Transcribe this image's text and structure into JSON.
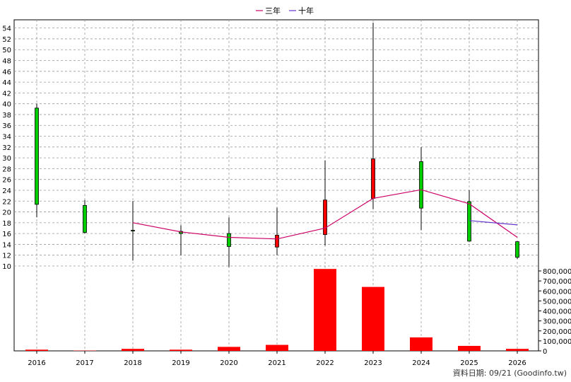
{
  "legend": [
    {
      "label": "三年",
      "color": "#cc0066"
    },
    {
      "label": "十年",
      "color": "#6633cc"
    }
  ],
  "footer": "資料日期: 09/21  (Goodinfo.tw)",
  "chart_data": [
    {
      "type": "candlestick",
      "categories": [
        "2016",
        "2017",
        "2018",
        "2019",
        "2020",
        "2021",
        "2022",
        "2023",
        "2024",
        "2025",
        "2026"
      ],
      "ylim": [
        10,
        55
      ],
      "yticks": [
        10,
        12,
        14,
        16,
        18,
        20,
        22,
        24,
        26,
        28,
        30,
        32,
        34,
        36,
        38,
        40,
        42,
        44,
        46,
        48,
        50,
        52,
        54
      ],
      "grid": true,
      "candles": [
        {
          "x": "2016",
          "open": 39.2,
          "close": 21.4,
          "high": 40.0,
          "low": 19.0
        },
        {
          "x": "2017",
          "open": 21.2,
          "close": 16.2,
          "high": 22.2,
          "low": 16.0
        },
        {
          "x": "2018",
          "open": 16.6,
          "close": 16.5,
          "high": 22.0,
          "low": 11.0
        },
        {
          "x": "2019",
          "open": 16.4,
          "close": 16.0,
          "high": 17.5,
          "low": 12.0
        },
        {
          "x": "2020",
          "open": 16.0,
          "close": 13.6,
          "high": 19.0,
          "low": 9.8
        },
        {
          "x": "2021",
          "open": 13.5,
          "close": 15.7,
          "high": 20.8,
          "low": 12.0
        },
        {
          "x": "2022",
          "open": 15.8,
          "close": 22.2,
          "high": 29.5,
          "low": 13.8
        },
        {
          "x": "2023",
          "open": 22.5,
          "close": 29.8,
          "high": 55.0,
          "low": 20.5
        },
        {
          "x": "2024",
          "open": 29.3,
          "close": 20.7,
          "high": 32.0,
          "low": 16.6
        },
        {
          "x": "2025",
          "open": 21.9,
          "close": 14.6,
          "high": 24.0,
          "low": 14.5
        },
        {
          "x": "2026",
          "open": 14.5,
          "close": 11.6,
          "high": 14.6,
          "low": 11.3
        }
      ],
      "series": [
        {
          "name": "三年",
          "color": "#cc0066",
          "x": [
            "2018",
            "2019",
            "2020",
            "2021",
            "2022",
            "2023",
            "2024",
            "2025",
            "2026"
          ],
          "values": [
            18.0,
            16.3,
            15.3,
            15.0,
            17.0,
            22.5,
            24.1,
            21.5,
            15.3
          ]
        },
        {
          "name": "十年",
          "color": "#6633cc",
          "x": [
            "2025",
            "2026"
          ],
          "values": [
            18.4,
            17.6
          ]
        }
      ],
      "up_color": "#ff0000",
      "down_color": "#00cc00"
    },
    {
      "type": "bar",
      "categories": [
        "2016",
        "2017",
        "2018",
        "2019",
        "2020",
        "2021",
        "2022",
        "2023",
        "2024",
        "2025",
        "2026"
      ],
      "values": [
        12000,
        3000,
        20000,
        12000,
        40000,
        60000,
        820000,
        640000,
        135000,
        50000,
        20000
      ],
      "ylim": [
        0,
        800000
      ],
      "yticks": [
        "0",
        "100,000",
        "200,000",
        "300,000",
        "400,000",
        "500,000",
        "600,000",
        "700,000",
        "800,000"
      ],
      "color": "#ff0000"
    }
  ]
}
